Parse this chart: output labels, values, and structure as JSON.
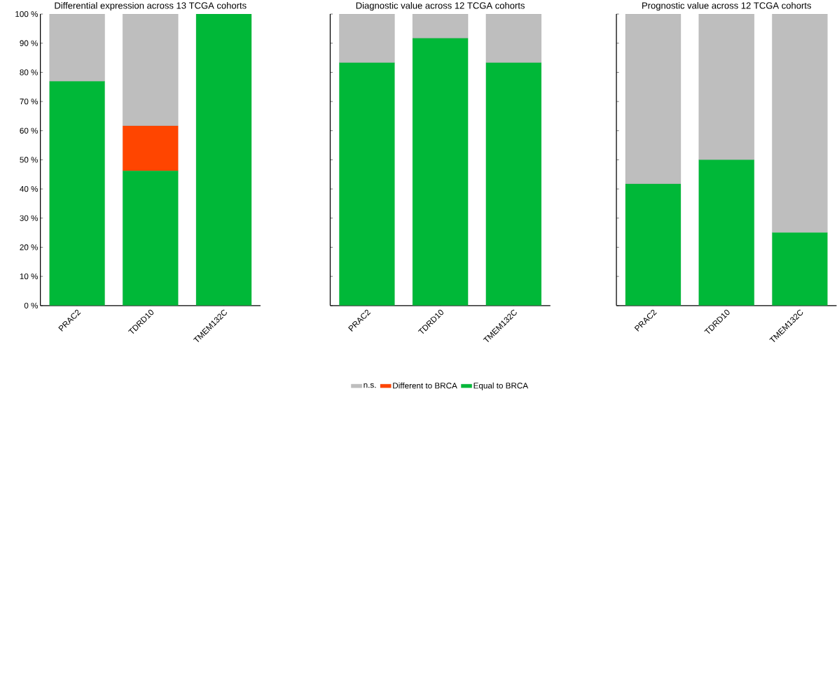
{
  "chart_data": [
    {
      "type": "bar",
      "title": "Differential expression across 13 TCGA cohorts",
      "categories": [
        "PRAC2",
        "TDRD10",
        "TMEM132C"
      ],
      "stacked": true,
      "ylim": [
        0,
        100
      ],
      "yticks": [
        {
          "value": 0,
          "label": "0 %"
        },
        {
          "value": 10,
          "label": "10 %"
        },
        {
          "value": 20,
          "label": "20 %"
        },
        {
          "value": 30,
          "label": "30 %"
        },
        {
          "value": 40,
          "label": "40 %"
        },
        {
          "value": 50,
          "label": "50 %"
        },
        {
          "value": 60,
          "label": "60 %"
        },
        {
          "value": 70,
          "label": "70 %"
        },
        {
          "value": 80,
          "label": "80 %"
        },
        {
          "value": 90,
          "label": "90 %"
        },
        {
          "value": 100,
          "label": "100 %"
        }
      ],
      "series": [
        {
          "color": "#00b838",
          "values": [
            76.9,
            46.2,
            100
          ]
        },
        {
          "color": "#ff4500",
          "values": [
            0,
            15.4,
            0
          ]
        },
        {
          "color": "#bebebe",
          "values": [
            23.1,
            38.4,
            0
          ]
        }
      ]
    },
    {
      "type": "bar",
      "title": "Diagnostic value across 12 TCGA cohorts",
      "categories": [
        "PRAC2",
        "TDRD10",
        "TMEM132C"
      ],
      "stacked": true,
      "ylim": [
        0,
        100
      ],
      "tick_labels": "x",
      "legend": "bottom",
      "yticks": [
        {
          "value": 0,
          "label": null
        },
        {
          "value": 10,
          "label": null
        },
        {
          "value": 20,
          "label": null
        },
        {
          "value": 30,
          "label": null
        },
        {
          "value": 40,
          "label": null
        },
        {
          "value": 50,
          "label": null
        },
        {
          "value": 60,
          "label": null
        },
        {
          "value": 70,
          "label": null
        },
        {
          "value": 80,
          "label": null
        },
        {
          "value": 90,
          "label": null
        },
        {
          "value": 100,
          "label": null
        }
      ],
      "series": [
        {
          "name": "Equal to BRCA",
          "color": "#00b838",
          "values": [
            83.3,
            91.7,
            83.3
          ]
        },
        {
          "name": "Different to BRCA",
          "color": "#ff4500",
          "values": [
            0,
            0,
            0
          ]
        },
        {
          "name": "n.s.",
          "color": "#bebebe",
          "values": [
            16.7,
            8.3,
            16.7
          ]
        }
      ]
    },
    {
      "type": "bar",
      "title": "Prognostic value across 12 TCGA cohorts",
      "categories": [
        "PRAC2",
        "TDRD10",
        "TMEM132C"
      ],
      "stacked": true,
      "ylim": [
        0,
        100
      ],
      "tick_labels": "x",
      "yticks": [
        {
          "value": 0,
          "label": null
        },
        {
          "value": 10,
          "label": null
        },
        {
          "value": 20,
          "label": null
        },
        {
          "value": 30,
          "label": null
        },
        {
          "value": 40,
          "label": null
        },
        {
          "value": 50,
          "label": null
        },
        {
          "value": 60,
          "label": null
        },
        {
          "value": 70,
          "label": null
        },
        {
          "value": 80,
          "label": null
        },
        {
          "value": 90,
          "label": null
        },
        {
          "value": 100,
          "label": null
        }
      ],
      "series": [
        {
          "color": "#00b838",
          "values": [
            41.7,
            50,
            25
          ]
        },
        {
          "color": "#ff4500",
          "values": [
            0,
            0,
            0
          ]
        },
        {
          "color": "#bebebe",
          "values": [
            58.3,
            50,
            75
          ]
        }
      ]
    }
  ]
}
